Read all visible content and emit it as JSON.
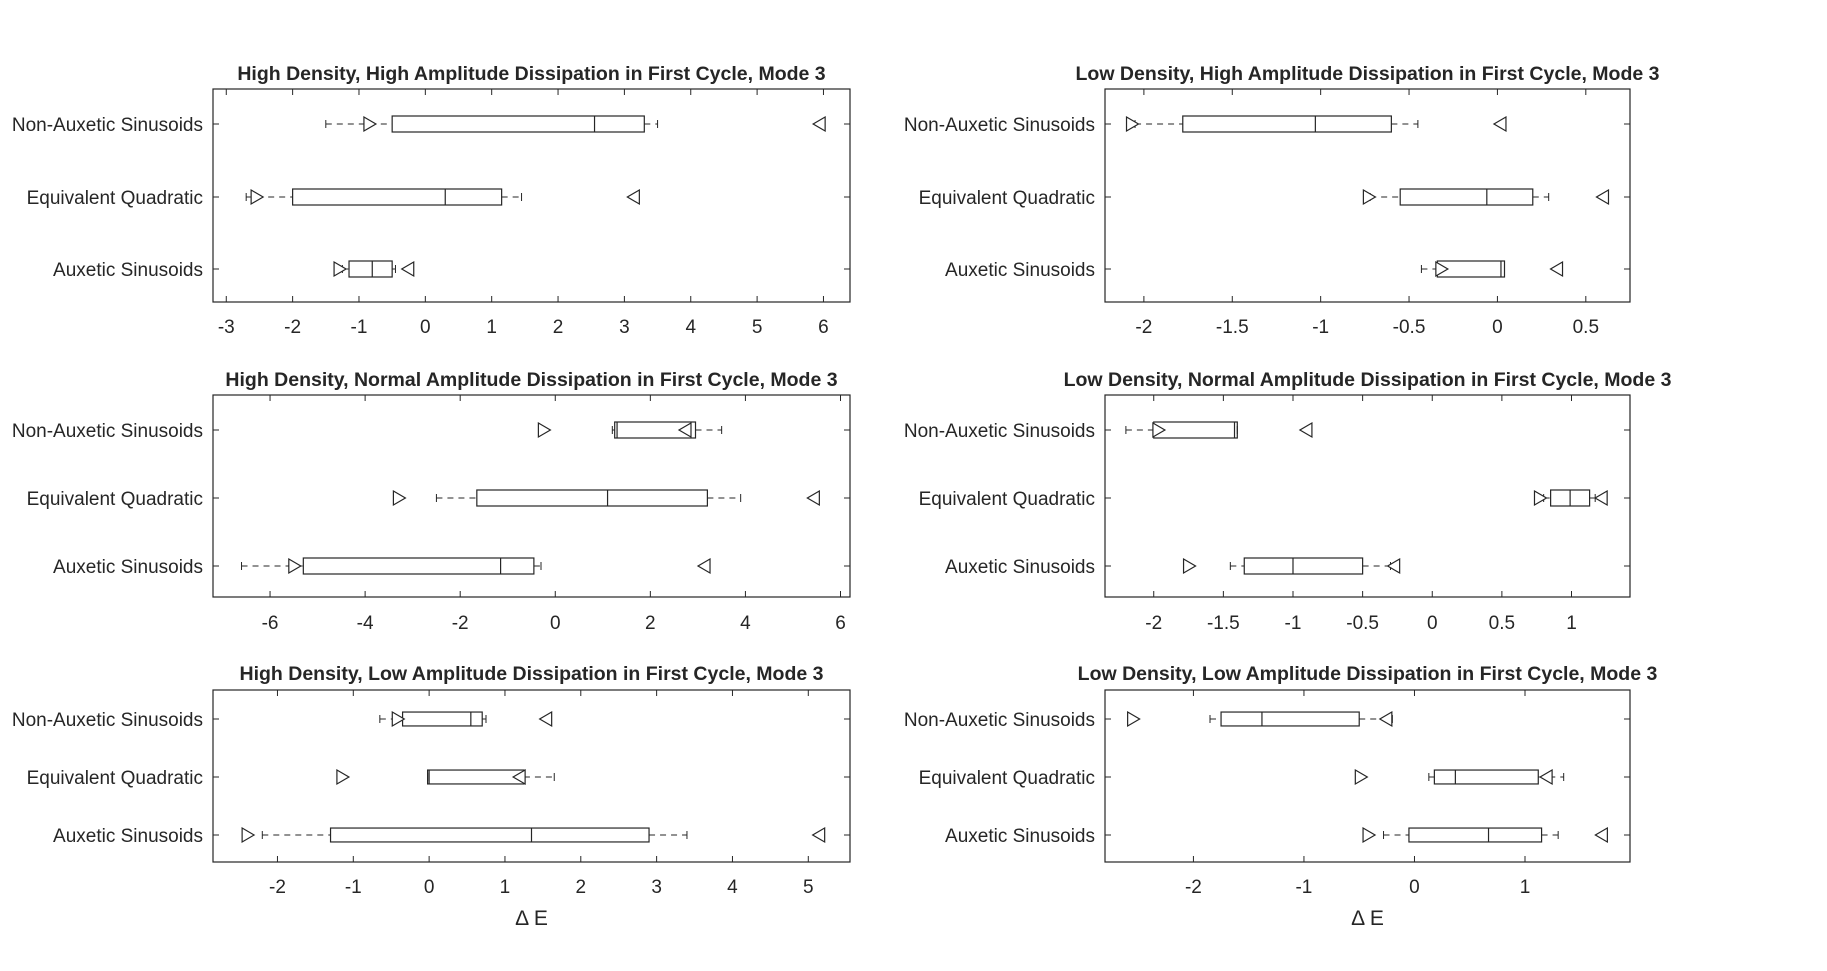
{
  "colors": {
    "frame": "#262626",
    "box": "#262626",
    "background": "#ffffff"
  },
  "chart_data": [
    {
      "type": "boxplot",
      "title": "High Density, High Amplitude Dissipation in First Cycle, Mode 3",
      "categories": [
        "Non-Auxetic Sinusoids",
        "Equivalent Quadratic",
        "Auxetic Sinusoids"
      ],
      "xlim": [
        -3.2,
        6.4
      ],
      "xticks": [
        -3,
        -2,
        -1,
        0,
        1,
        2,
        3,
        4,
        5,
        6
      ],
      "xtick_labels": [
        "-3",
        "-2",
        "-1",
        "0",
        "1",
        "2",
        "3",
        "4",
        "5",
        "6"
      ],
      "xlabel": "",
      "boxes": [
        {
          "whisker_low": -1.5,
          "q1": -0.5,
          "median": 2.55,
          "q3": 3.3,
          "whisker_high": 3.5,
          "marker_right": -0.85,
          "marker_left": 5.95
        },
        {
          "whisker_low": -2.7,
          "q1": -2.0,
          "median": 0.3,
          "q3": 1.15,
          "whisker_high": 1.45,
          "marker_right": -2.55,
          "marker_left": 3.15
        },
        {
          "whisker_low": -1.25,
          "q1": -1.15,
          "median": -0.8,
          "q3": -0.5,
          "whisker_high": -0.45,
          "marker_right": -1.3,
          "marker_left": -0.25
        }
      ]
    },
    {
      "type": "boxplot",
      "title": "Low Density, High Amplitude Dissipation in First Cycle, Mode 3",
      "categories": [
        "Non-Auxetic Sinusoids",
        "Equivalent Quadratic",
        "Auxetic Sinusoids"
      ],
      "xlim": [
        -2.22,
        0.75
      ],
      "xticks": [
        -2,
        -1.5,
        -1,
        -0.5,
        0,
        0.5
      ],
      "xtick_labels": [
        "-2",
        "-1.5",
        "-1",
        "-0.5",
        "0",
        "0.5"
      ],
      "xlabel": "",
      "boxes": [
        {
          "whisker_low": -2.05,
          "q1": -1.78,
          "median": -1.03,
          "q3": -0.6,
          "whisker_high": -0.45,
          "marker_right": -2.07,
          "marker_left": 0.02
        },
        {
          "whisker_low": -0.72,
          "q1": -0.55,
          "median": -0.06,
          "q3": 0.2,
          "whisker_high": 0.29,
          "marker_right": -0.73,
          "marker_left": 0.6
        },
        {
          "whisker_low": -0.43,
          "q1": -0.34,
          "median": 0.02,
          "q3": 0.04,
          "whisker_high": 0.04,
          "marker_right": -0.32,
          "marker_left": 0.34
        }
      ]
    },
    {
      "type": "boxplot",
      "title": "High Density, Normal Amplitude Dissipation in First Cycle, Mode 3",
      "categories": [
        "Non-Auxetic Sinusoids",
        "Equivalent Quadratic",
        "Auxetic Sinusoids"
      ],
      "xlim": [
        -7.2,
        6.2
      ],
      "xticks": [
        -6,
        -4,
        -2,
        0,
        2,
        4,
        6
      ],
      "xtick_labels": [
        "-6",
        "-4",
        "-2",
        "0",
        "2",
        "4",
        "6"
      ],
      "xlabel": "",
      "boxes": [
        {
          "whisker_low": 1.2,
          "q1": 1.25,
          "median": 1.3,
          "q3": 2.95,
          "whisker_high": 3.5,
          "marker_right": -0.25,
          "marker_left": 2.75
        },
        {
          "whisker_low": -2.5,
          "q1": -1.65,
          "median": 1.1,
          "q3": 3.2,
          "whisker_high": 3.9,
          "marker_right": -3.3,
          "marker_left": 5.45
        },
        {
          "whisker_low": -6.6,
          "q1": -5.3,
          "median": -1.15,
          "q3": -0.45,
          "whisker_high": -0.3,
          "marker_right": -5.5,
          "marker_left": 3.15
        }
      ]
    },
    {
      "type": "boxplot",
      "title": "Low Density, Normal Amplitude Dissipation in First Cycle, Mode 3",
      "categories": [
        "Non-Auxetic Sinusoids",
        "Equivalent Quadratic",
        "Auxetic Sinusoids"
      ],
      "xlim": [
        -2.35,
        1.42
      ],
      "xticks": [
        -2,
        -1.5,
        -1,
        -0.5,
        0,
        0.5,
        1
      ],
      "xtick_labels": [
        "-2",
        "-1.5",
        "-1",
        "-0.5",
        "0",
        "0.5",
        "1"
      ],
      "xlabel": "",
      "boxes": [
        {
          "whisker_low": -2.2,
          "q1": -2.0,
          "median": -1.42,
          "q3": -1.4,
          "whisker_high": -1.4,
          "marker_right": -1.97,
          "marker_left": -0.9
        },
        {
          "whisker_low": 0.8,
          "q1": 0.85,
          "median": 0.99,
          "q3": 1.13,
          "whisker_high": 1.17,
          "marker_right": 0.77,
          "marker_left": 1.22
        },
        {
          "whisker_low": -1.45,
          "q1": -1.35,
          "median": -1.0,
          "q3": -0.5,
          "whisker_high": -0.3,
          "marker_right": -1.75,
          "marker_left": -0.27
        }
      ]
    },
    {
      "type": "boxplot",
      "title": "High Density, Low Amplitude Dissipation in First Cycle, Mode 3",
      "categories": [
        "Non-Auxetic Sinusoids",
        "Equivalent Quadratic",
        "Auxetic Sinusoids"
      ],
      "xlim": [
        -2.85,
        5.55
      ],
      "xticks": [
        -2,
        -1,
        0,
        1,
        2,
        3,
        4,
        5
      ],
      "xtick_labels": [
        "-2",
        "-1",
        "0",
        "1",
        "2",
        "3",
        "4",
        "5"
      ],
      "xlabel": "Δ E",
      "boxes": [
        {
          "whisker_low": -0.65,
          "q1": -0.35,
          "median": 0.55,
          "q3": 0.7,
          "whisker_high": 0.75,
          "marker_right": -0.42,
          "marker_left": 1.55
        },
        {
          "whisker_low": -0.02,
          "q1": -0.02,
          "median": 0.0,
          "q3": 1.25,
          "whisker_high": 1.65,
          "marker_right": -1.15,
          "marker_left": 1.2
        },
        {
          "whisker_low": -2.2,
          "q1": -1.3,
          "median": 1.35,
          "q3": 2.9,
          "whisker_high": 3.4,
          "marker_right": -2.4,
          "marker_left": 5.15
        }
      ]
    },
    {
      "type": "boxplot",
      "title": "Low Density, Low Amplitude Dissipation in First Cycle, Mode 3",
      "categories": [
        "Non-Auxetic Sinusoids",
        "Equivalent Quadratic",
        "Auxetic Sinusoids"
      ],
      "xlim": [
        -2.8,
        1.95
      ],
      "xticks": [
        -2,
        -1,
        0,
        1
      ],
      "xtick_labels": [
        "-2",
        "-1",
        "0",
        "1"
      ],
      "xlabel": "Δ E",
      "boxes": [
        {
          "whisker_low": -1.85,
          "q1": -1.75,
          "median": -1.38,
          "q3": -0.5,
          "whisker_high": -0.2,
          "marker_right": -2.55,
          "marker_left": -0.25
        },
        {
          "whisker_low": 0.13,
          "q1": 0.18,
          "median": 0.37,
          "q3": 1.12,
          "whisker_high": 1.35,
          "marker_right": -0.49,
          "marker_left": 1.2
        },
        {
          "whisker_low": -0.28,
          "q1": -0.05,
          "median": 0.67,
          "q3": 1.15,
          "whisker_high": 1.3,
          "marker_right": -0.42,
          "marker_left": 1.7
        }
      ]
    }
  ]
}
